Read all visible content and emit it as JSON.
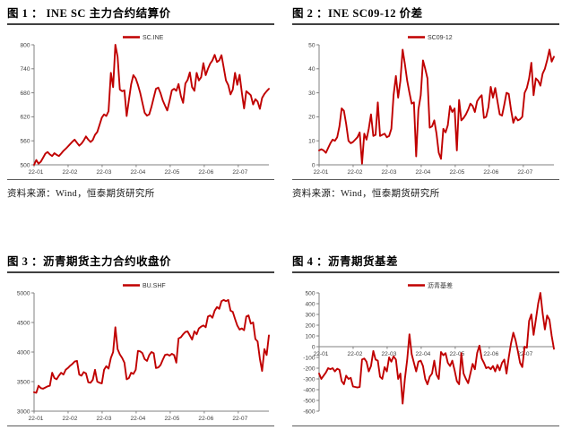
{
  "colors": {
    "line": "#C00000",
    "axis": "#808080",
    "tick_text": "#404040",
    "legend_text": "#333333"
  },
  "figures": [
    {
      "title": "图 1 ：  INE SC 主力合约结算价",
      "source": "资料来源：Wind，恒泰期货研究所"
    },
    {
      "title": "图 2 ：INE SC09-12 价差",
      "source": "资料来源：Wind，恒泰期货研究所"
    },
    {
      "title": "图 3 ：沥青期货主力合约收盘价",
      "source": ""
    },
    {
      "title": "图 4 ：沥青期货基差",
      "source": ""
    }
  ],
  "chart_data": [
    {
      "type": "line",
      "title": "INE SC 主力合约结算价",
      "legend": "SC.INE",
      "x_labels": [
        "22-01",
        "22-02",
        "22-03",
        "22-04",
        "22-05",
        "22-06",
        "22-07"
      ],
      "months_total": 6.9,
      "ylim": [
        500,
        800
      ],
      "yticks": [
        500,
        560,
        620,
        680,
        740,
        800
      ],
      "axis_at_zero": false,
      "values": [
        500,
        512,
        503,
        508,
        518,
        528,
        532,
        526,
        522,
        529,
        525,
        522,
        528,
        535,
        540,
        546,
        552,
        558,
        563,
        555,
        548,
        553,
        561,
        571,
        563,
        557,
        562,
        575,
        582,
        600,
        618,
        626,
        622,
        634,
        730,
        694,
        800,
        770,
        688,
        684,
        686,
        622,
        662,
        701,
        724,
        716,
        700,
        680,
        655,
        630,
        623,
        626,
        645,
        668,
        690,
        693,
        679,
        661,
        648,
        636,
        660,
        686,
        690,
        685,
        702,
        672,
        655,
        703,
        712,
        731,
        694,
        685,
        730,
        711,
        719,
        754,
        724,
        740,
        753,
        761,
        775,
        757,
        761,
        774,
        743,
        711,
        699,
        676,
        688,
        730,
        700,
        725,
        681,
        641,
        684,
        679,
        674,
        651,
        664,
        658,
        640,
        667,
        677,
        684,
        690
      ]
    },
    {
      "type": "line",
      "title": "INE SC09-12 价差",
      "legend": "SC09-12",
      "x_labels": [
        "22-01",
        "22-02",
        "22-03",
        "22-04",
        "22-05",
        "22-06",
        "22-07"
      ],
      "months_total": 6.9,
      "ylim": [
        0,
        50
      ],
      "yticks": [
        0,
        10,
        20,
        30,
        40,
        50
      ],
      "axis_at_zero": false,
      "values": [
        6,
        6.5,
        6,
        5,
        7,
        9,
        10.5,
        10,
        11.5,
        16,
        23.5,
        22.5,
        17,
        10,
        9,
        9.5,
        10.5,
        11.5,
        13.5,
        0.5,
        13,
        10.5,
        15,
        21,
        12,
        12.5,
        26,
        12,
        12.5,
        13,
        11.5,
        12,
        15,
        29,
        37,
        28,
        35,
        48,
        42,
        35,
        30,
        25.5,
        26,
        3.5,
        23,
        29,
        43.5,
        40,
        36,
        15.5,
        16,
        18.5,
        13,
        5,
        2.5,
        15,
        13.5,
        16.5,
        24.5,
        22,
        23.5,
        6,
        27,
        18.5,
        19.5,
        21,
        23,
        25.5,
        24.5,
        22,
        26.5,
        28,
        29,
        19.5,
        20,
        24,
        32.5,
        28,
        32,
        26.5,
        21,
        20.5,
        25,
        30,
        29.5,
        23,
        17.5,
        20,
        18.5,
        19,
        20,
        30,
        32,
        36,
        42.5,
        29,
        36,
        35,
        33,
        38,
        40,
        43.5,
        48,
        43,
        45
      ]
    },
    {
      "type": "line",
      "title": "沥青期货主力合约收盘价",
      "legend": "BU.SHF",
      "x_labels": [
        "22-01",
        "22-02",
        "22-03",
        "22-04",
        "22-05",
        "22-06",
        "22-07"
      ],
      "months_total": 6.9,
      "ylim": [
        3000,
        5000
      ],
      "yticks": [
        3000,
        3500,
        4000,
        4500,
        5000
      ],
      "axis_at_zero": false,
      "values": [
        3320,
        3310,
        3430,
        3390,
        3380,
        3400,
        3420,
        3430,
        3650,
        3560,
        3540,
        3600,
        3650,
        3620,
        3700,
        3730,
        3770,
        3800,
        3840,
        3850,
        3620,
        3600,
        3660,
        3640,
        3490,
        3480,
        3530,
        3700,
        3500,
        3480,
        3470,
        3700,
        3760,
        3720,
        3900,
        4000,
        4420,
        4050,
        3960,
        3900,
        3820,
        3540,
        3560,
        3650,
        3630,
        3700,
        4020,
        4010,
        3980,
        3880,
        3850,
        3950,
        4000,
        3980,
        3730,
        3740,
        3780,
        3870,
        3950,
        3960,
        3940,
        3970,
        3950,
        3820,
        4230,
        4250,
        4300,
        4340,
        4350,
        4280,
        4210,
        4350,
        4300,
        4400,
        4430,
        4450,
        4420,
        4600,
        4620,
        4580,
        4700,
        4760,
        4730,
        4860,
        4880,
        4860,
        4880,
        4700,
        4680,
        4560,
        4450,
        4380,
        4400,
        4370,
        4600,
        4620,
        4480,
        4500,
        4220,
        4180,
        3890,
        3680,
        4050,
        3950,
        4280
      ]
    },
    {
      "type": "line",
      "title": "沥青期货基差",
      "legend": "沥青基差",
      "x_labels": [
        "22-01",
        "22-02",
        "22-03",
        "22-04",
        "22-05",
        "22-06",
        "22-07"
      ],
      "months_total": 6.9,
      "ylim": [
        -600,
        500
      ],
      "yticks": [
        -600,
        -500,
        -400,
        -300,
        -200,
        -100,
        0,
        100,
        200,
        300,
        400,
        500
      ],
      "axis_at_zero": true,
      "values": [
        -250,
        -300,
        -270,
        -240,
        -200,
        -210,
        -200,
        -230,
        -205,
        -215,
        -320,
        -350,
        -270,
        -300,
        -290,
        -370,
        -375,
        -380,
        -375,
        -120,
        -110,
        -140,
        -230,
        -180,
        -40,
        -120,
        -130,
        -280,
        -300,
        -190,
        -230,
        -100,
        -140,
        -90,
        -120,
        -300,
        -250,
        -530,
        -300,
        -120,
        115,
        -70,
        -150,
        -230,
        -140,
        -130,
        -180,
        -300,
        -350,
        -280,
        -250,
        -130,
        -260,
        -300,
        -50,
        -80,
        -60,
        -150,
        -180,
        -130,
        -220,
        -320,
        -350,
        -60,
        -250,
        -300,
        -340,
        -250,
        -160,
        -210,
        -60,
        10,
        -110,
        -150,
        -200,
        -190,
        -210,
        -180,
        -230,
        -170,
        -220,
        -150,
        -120,
        -250,
        -100,
        30,
        130,
        60,
        -40,
        -150,
        -190,
        0,
        -10,
        240,
        300,
        110,
        250,
        400,
        500,
        310,
        160,
        290,
        250,
        100,
        -20
      ]
    }
  ]
}
